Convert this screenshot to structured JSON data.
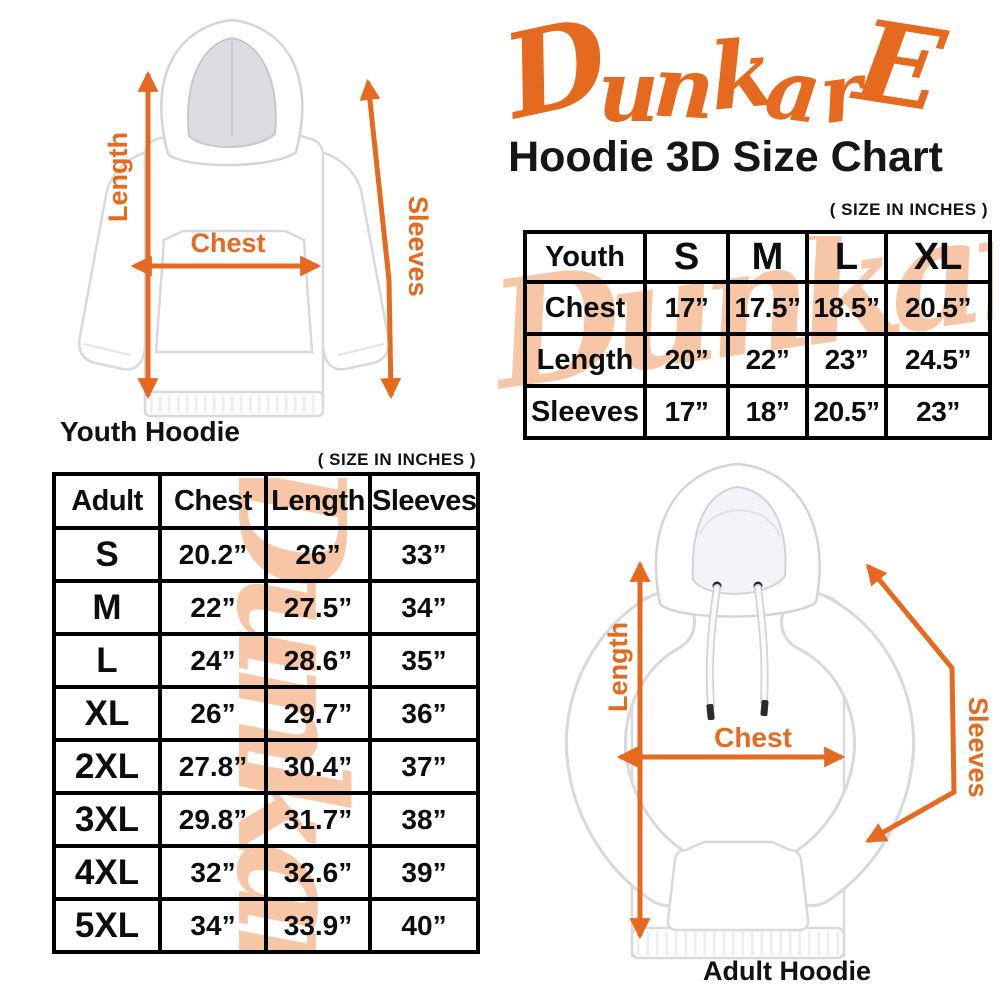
{
  "logo": {
    "text": "DunkarE",
    "color": "#E5691E"
  },
  "title": "Hoodie 3D Size Chart",
  "watermark_text": "Dunkare",
  "colors": {
    "accent_orange": "#E5691E",
    "watermark_peach": "#F6C6A6",
    "table_border_black": "#000000",
    "text_black": "#111111"
  },
  "youth_section": {
    "size_note": "( SIZE IN INCHES )",
    "caption": "Youth Hoodie",
    "diagram_labels": {
      "length": "Length",
      "chest": "Chest",
      "sleeves": "Sleeves"
    },
    "table": {
      "header": [
        "Youth",
        "S",
        "M",
        "L",
        "XL"
      ],
      "rows": [
        {
          "label": "Chest",
          "values": [
            "17”",
            "17.5”",
            "18.5”",
            "20.5”"
          ]
        },
        {
          "label": "Length",
          "values": [
            "20”",
            "22”",
            "23”",
            "24.5”"
          ]
        },
        {
          "label": "Sleeves",
          "values": [
            "17”",
            "18”",
            "20.5”",
            "23”"
          ]
        }
      ]
    }
  },
  "adult_section": {
    "size_note": "( SIZE IN INCHES )",
    "caption": "Adult Hoodie",
    "diagram_labels": {
      "length": "Length",
      "chest": "Chest",
      "sleeves": "Sleeves"
    },
    "table": {
      "header": [
        "Adult",
        "Chest",
        "Length",
        "Sleeves"
      ],
      "rows": [
        {
          "label": "S",
          "values": [
            "20.2”",
            "26”",
            "33”"
          ]
        },
        {
          "label": "M",
          "values": [
            "22”",
            "27.5”",
            "34”"
          ]
        },
        {
          "label": "L",
          "values": [
            "24”",
            "28.6”",
            "35”"
          ]
        },
        {
          "label": "XL",
          "values": [
            "26”",
            "29.7”",
            "36”"
          ]
        },
        {
          "label": "2XL",
          "values": [
            "27.8”",
            "30.4”",
            "37”"
          ]
        },
        {
          "label": "3XL",
          "values": [
            "29.8”",
            "31.7”",
            "38”"
          ]
        },
        {
          "label": "4XL",
          "values": [
            "32”",
            "32.6”",
            "39”"
          ]
        },
        {
          "label": "5XL",
          "values": [
            "34”",
            "33.9”",
            "40”"
          ]
        }
      ]
    }
  }
}
